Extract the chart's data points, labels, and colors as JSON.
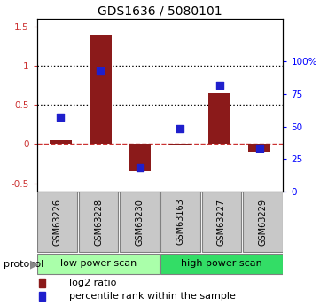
{
  "title": "GDS1636 / 5080101",
  "samples": [
    "GSM63226",
    "GSM63228",
    "GSM63230",
    "GSM63163",
    "GSM63227",
    "GSM63229"
  ],
  "log2_ratio": [
    0.05,
    1.38,
    -0.35,
    -0.02,
    0.65,
    -0.1
  ],
  "percentile_rank": [
    57,
    93,
    18,
    48,
    82,
    33
  ],
  "bar_color": "#8B1A1A",
  "dot_color": "#1F1FCC",
  "ylim_left": [
    -0.6,
    1.6
  ],
  "ylim_right": [
    0,
    133.33
  ],
  "yticks_left": [
    -0.5,
    0.0,
    0.5,
    1.0,
    1.5
  ],
  "ytick_labels_left": [
    "-0.5",
    "0",
    "0.5",
    "1",
    "1.5"
  ],
  "yticks_right": [
    0,
    25,
    50,
    75,
    100
  ],
  "ytick_labels_right": [
    "0",
    "25",
    "50",
    "75",
    "100%"
  ],
  "hline_dotted_values": [
    0.5,
    1.0
  ],
  "hline_dashed_value": 0.0,
  "hline_dashed_color": "#CC3333",
  "protocol_groups": [
    {
      "label": "low power scan",
      "start": 0,
      "end": 3,
      "color": "#AAFFAA"
    },
    {
      "label": "high power scan",
      "start": 3,
      "end": 6,
      "color": "#33DD66"
    }
  ],
  "legend_items": [
    {
      "label": "log2 ratio",
      "color": "#8B1A1A"
    },
    {
      "label": "percentile rank within the sample",
      "color": "#1F1FCC"
    }
  ],
  "bar_width": 0.55,
  "dot_size": 30,
  "sample_box_color": "#C8C8C8",
  "protocol_label": "protocol"
}
